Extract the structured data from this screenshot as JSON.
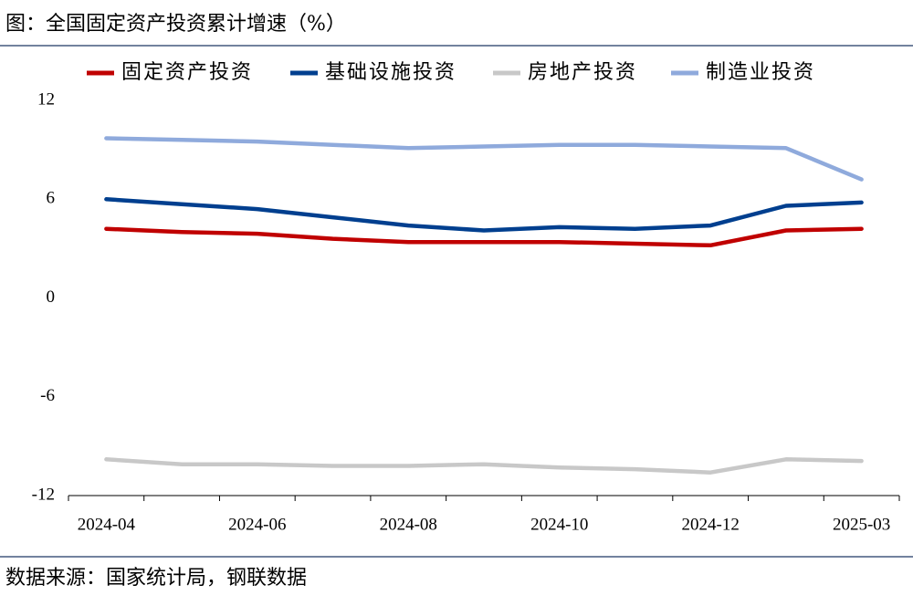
{
  "chart_data": {
    "type": "line",
    "title": "图：全国固定资产投资累计增速（%）",
    "source": "数据来源：国家统计局，钢联数据",
    "categories": [
      "2024-04",
      null,
      "2024-06",
      null,
      "2024-08",
      null,
      "2024-10",
      null,
      "2024-12",
      null,
      "2025-03"
    ],
    "series": [
      {
        "name": "固定资产投资",
        "color": "#c00000",
        "values": [
          4.2,
          4.0,
          3.9,
          3.6,
          3.4,
          3.4,
          3.4,
          3.3,
          3.2,
          4.1,
          4.2
        ]
      },
      {
        "name": "基础设施投资",
        "color": "#003f8f",
        "values": [
          6.0,
          5.7,
          5.4,
          4.9,
          4.4,
          4.1,
          4.3,
          4.2,
          4.4,
          5.6,
          5.8
        ]
      },
      {
        "name": "房地产投资",
        "color": "#c8c8c8",
        "values": [
          -9.8,
          -10.1,
          -10.1,
          -10.2,
          -10.2,
          -10.1,
          -10.3,
          -10.4,
          -10.6,
          -9.8,
          -9.9
        ]
      },
      {
        "name": "制造业投资",
        "color": "#8faadc",
        "values": [
          9.7,
          9.6,
          9.5,
          9.3,
          9.1,
          9.2,
          9.3,
          9.3,
          9.2,
          9.1,
          7.2
        ]
      }
    ],
    "ylim": [
      -12,
      12
    ],
    "yticks": [
      12,
      6,
      0,
      -6,
      -12
    ],
    "legend": "top"
  }
}
